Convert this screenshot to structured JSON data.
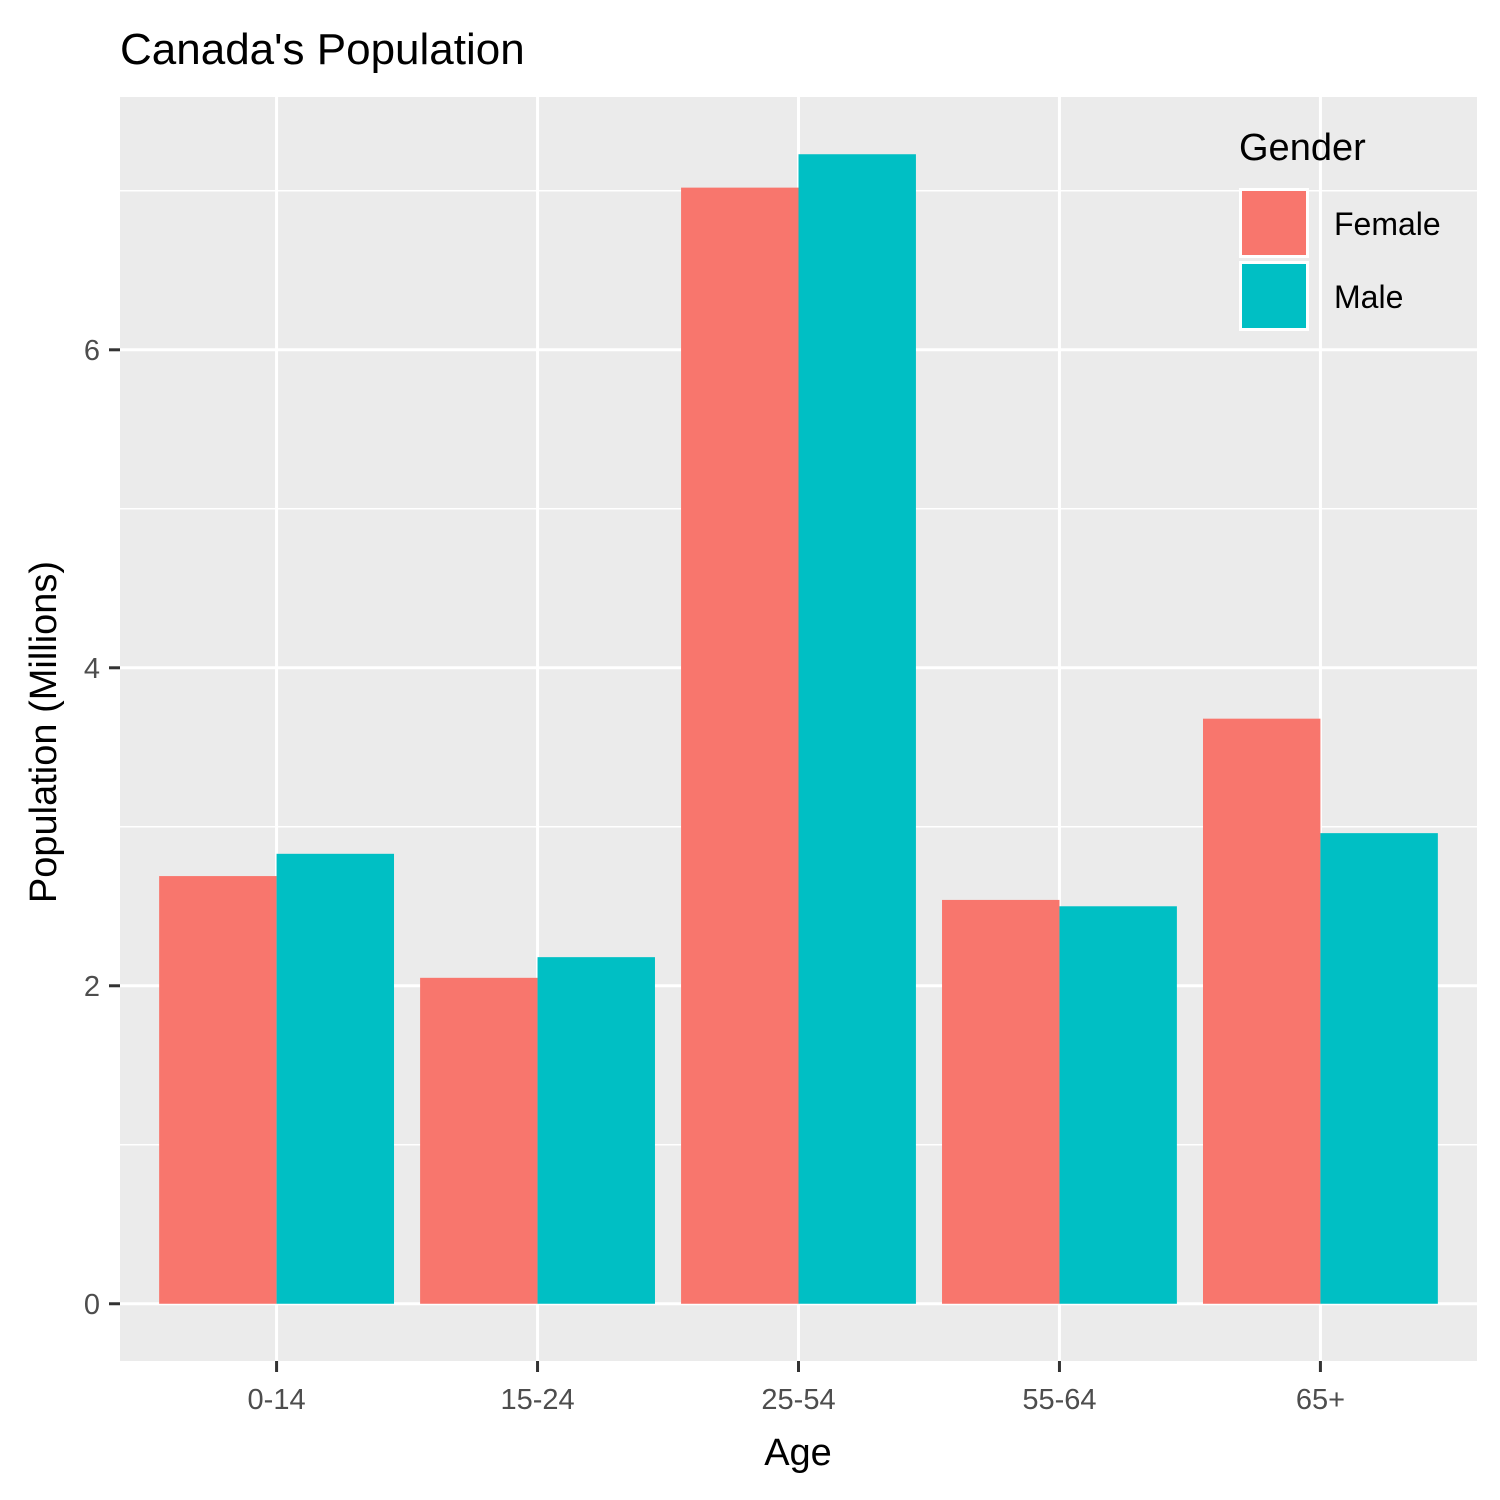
{
  "chart_data": {
    "type": "bar",
    "title": "Canada's Population",
    "xlabel": "Age",
    "ylabel": "Population (Millions)",
    "categories": [
      "0-14",
      "15-24",
      "25-54",
      "55-64",
      "65+"
    ],
    "series": [
      {
        "name": "Female",
        "color": "#F8766D",
        "values": [
          2.69,
          2.05,
          7.02,
          2.54,
          3.68
        ]
      },
      {
        "name": "Male",
        "color": "#00BFC4",
        "values": [
          2.83,
          2.18,
          7.23,
          2.5,
          2.96
        ]
      }
    ],
    "ylim": [
      -0.36,
      7.59
    ],
    "y_ticks": [
      0,
      2,
      4,
      6
    ],
    "y_tick_labels": [
      "0",
      "2",
      "4",
      "6"
    ],
    "legend": {
      "title": "Gender",
      "placement": "top-right"
    },
    "grid": true,
    "panel_background": "#EBEBEB"
  }
}
